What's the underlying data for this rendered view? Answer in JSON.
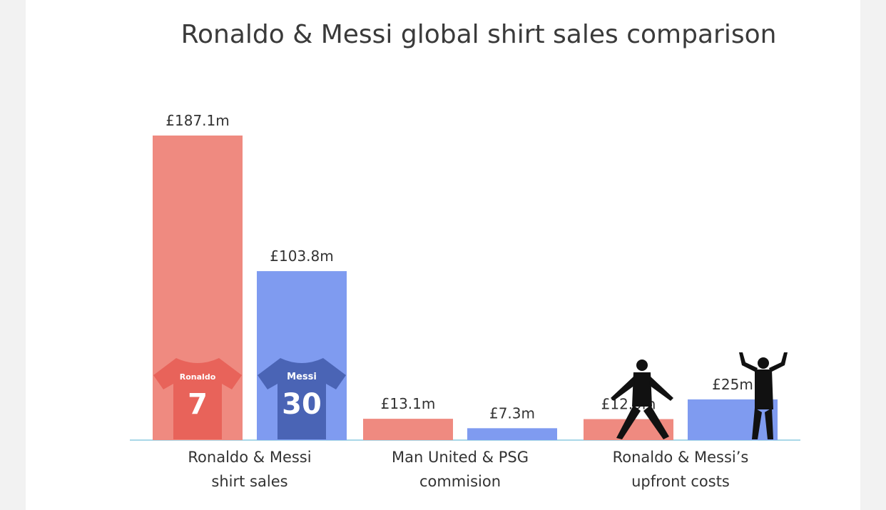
{
  "chart_data": {
    "type": "bar",
    "title": "Ronaldo & Messi global shirt sales comparison",
    "categories": [
      [
        "Ronaldo & Messi",
        "shirt sales"
      ],
      [
        "Man United & PSG",
        "commision"
      ],
      [
        "Ronaldo & Messi’s",
        "upfront costs"
      ]
    ],
    "series": [
      {
        "color": "#ef8a80",
        "values": [
          187.1,
          13.1,
          12.9
        ],
        "labels": [
          "£187.1m",
          "£13.1m",
          "£12.9m"
        ]
      },
      {
        "color": "#7f9bf0",
        "values": [
          103.8,
          7.3,
          25
        ],
        "labels": [
          "£103.8m",
          "£7.3m",
          "£25m"
        ]
      }
    ],
    "ylim": [
      0,
      187.1
    ],
    "grid": false,
    "legend": "none",
    "shirts": [
      {
        "name": "Ronaldo",
        "number": "7",
        "color": "#e8635a",
        "dark": "#d94f47",
        "icon": "ronaldo-shirt-icon"
      },
      {
        "name": "Messi",
        "number": "30",
        "color": "#4a64b5",
        "dark": "#3f57a3",
        "icon": "messi-shirt-icon"
      }
    ],
    "player_icons": [
      "ronaldo-silhouette-icon",
      "messi-silhouette-icon"
    ],
    "axis_color": "#a9d8e8"
  }
}
